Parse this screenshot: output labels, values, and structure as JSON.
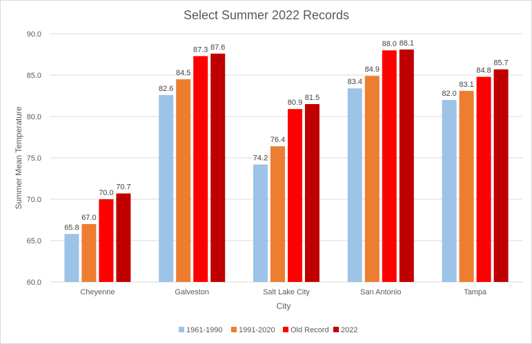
{
  "chart_data": {
    "type": "bar",
    "title": "Select Summer 2022 Records",
    "xlabel": "City",
    "ylabel": "Summer Mean Temperature",
    "ylim": [
      60,
      90
    ],
    "yticks": [
      "60.0",
      "65.0",
      "70.0",
      "75.0",
      "80.0",
      "85.0",
      "90.0"
    ],
    "grid": true,
    "legend_position": "bottom",
    "categories": [
      "Cheyenne",
      "Galveston",
      "Salt Lake City",
      "San Antonio",
      "Tampa"
    ],
    "series": [
      {
        "name": "1961-1990",
        "color": "#9dc3e6",
        "values": [
          65.8,
          82.6,
          74.2,
          83.4,
          82.0
        ]
      },
      {
        "name": "1991-2020",
        "color": "#ed7d31",
        "values": [
          67.0,
          84.5,
          76.4,
          84.9,
          83.1
        ]
      },
      {
        "name": "Old Record",
        "color": "#ff0000",
        "values": [
          70.0,
          87.3,
          80.9,
          88.0,
          84.8
        ]
      },
      {
        "name": "2022",
        "color": "#c00000",
        "values": [
          70.7,
          87.6,
          81.5,
          88.1,
          85.7
        ]
      }
    ]
  }
}
